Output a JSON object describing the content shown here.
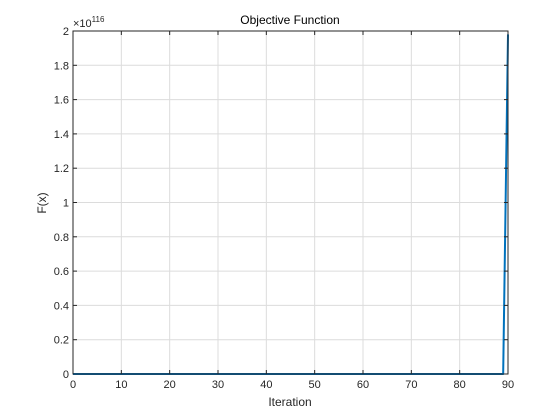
{
  "chart_data": {
    "type": "line",
    "title": "Objective Function",
    "xlabel": "Iteration",
    "ylabel": "F(x)",
    "xlim": [
      0,
      90
    ],
    "ylim": [
      0,
      2
    ],
    "y_exponent_label": "×10",
    "y_exponent_value": "116",
    "xticks": [
      "0",
      "10",
      "20",
      "30",
      "40",
      "50",
      "60",
      "70",
      "80",
      "90"
    ],
    "yticks": [
      "0",
      "0.2",
      "0.4",
      "0.6",
      "0.8",
      "1",
      "1.2",
      "1.4",
      "1.6",
      "1.8",
      "2"
    ],
    "grid": true,
    "series": [
      {
        "color": "#0072BD",
        "x": [
          0,
          89,
          90
        ],
        "y": [
          0,
          0,
          1.98
        ]
      }
    ]
  }
}
